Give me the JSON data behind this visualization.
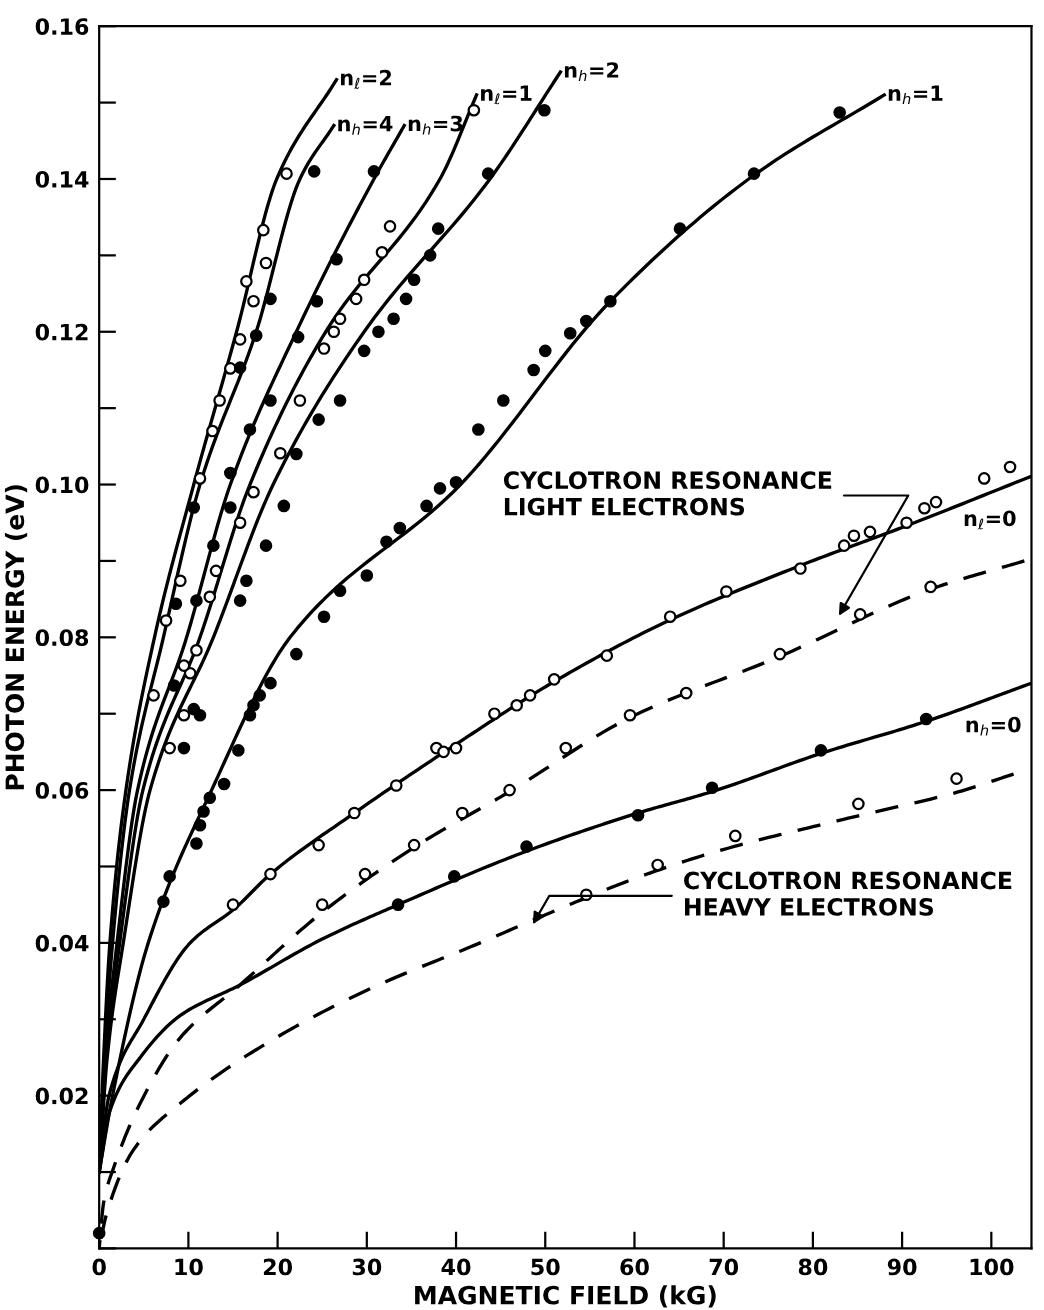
{
  "chart_data": {
    "type": "line",
    "xlabel": "MAGNETIC FIELD (kG)",
    "ylabel": "PHOTON ENERGY (eV)",
    "xlim": [
      0,
      104.5
    ],
    "ylim": [
      0,
      0.16
    ],
    "xticks": [
      0,
      10,
      20,
      30,
      40,
      50,
      60,
      70,
      80,
      90,
      100
    ],
    "yticks": [
      {
        "value": 0,
        "label": null
      },
      {
        "value": 0.01,
        "label": null
      },
      {
        "value": 0.02,
        "label": "0.02"
      },
      {
        "value": 0.03,
        "label": null
      },
      {
        "value": 0.04,
        "label": "0.04"
      },
      {
        "value": 0.05,
        "label": null
      },
      {
        "value": 0.06,
        "label": "0.06"
      },
      {
        "value": 0.07,
        "label": null
      },
      {
        "value": 0.08,
        "label": "0.08"
      },
      {
        "value": 0.09,
        "label": null
      },
      {
        "value": 0.1,
        "label": "0.10"
      },
      {
        "value": 0.11,
        "label": null
      },
      {
        "value": 0.12,
        "label": "0.12"
      },
      {
        "value": 0.13,
        "label": null
      },
      {
        "value": 0.14,
        "label": "0.14"
      },
      {
        "value": 0.15,
        "label": null
      },
      {
        "value": 0.16,
        "label": "0.16"
      }
    ],
    "grid": false,
    "legend": false,
    "annotations": [
      {
        "text": "CYCLOTRON RESONANCE\nLIGHT ELECTRONS",
        "x": 82.6,
        "y": 0.0822
      },
      {
        "text": "CYCLOTRON RESONANCE\nHEAVY ELECTRONS",
        "x": 48.3,
        "y": 0.0418
      }
    ],
    "series": [
      {
        "name": "n$_{ℓ}$=2",
        "color": "#000000",
        "line_style": "solid",
        "x": [
          0,
          0.5,
          1.2,
          3.0,
          6.2,
          10.6,
          15.4,
          19.9,
          26.6
        ],
        "values": [
          0.01,
          0.025,
          0.04,
          0.06,
          0.08,
          0.1,
          0.12,
          0.14,
          0.153
        ]
      },
      {
        "name": "n$_{h}$=4",
        "color": "#000000",
        "line_style": "solid",
        "x": [
          0,
          0.6,
          1.5,
          3.4,
          7.2,
          11.3,
          17.6,
          22.5,
          26.3
        ],
        "values": [
          0.01,
          0.025,
          0.04,
          0.06,
          0.08,
          0.1,
          0.12,
          0.14,
          0.147
        ]
      },
      {
        "name": "n$_{h}$=3",
        "color": "#000000",
        "line_style": "solid",
        "x": [
          0,
          0.7,
          2.0,
          4.3,
          9.8,
          14.7,
          22.1,
          30.8,
          34.2
        ],
        "values": [
          0.01,
          0.025,
          0.04,
          0.06,
          0.08,
          0.1,
          0.12,
          0.14,
          0.147
        ]
      },
      {
        "name": "n$_{ℓ}$=1",
        "color": "#000000",
        "line_style": "solid",
        "x": [
          0,
          0.8,
          2.3,
          4.9,
          11.3,
          16.9,
          25.4,
          38.2,
          42.3
        ],
        "values": [
          0.01,
          0.025,
          0.04,
          0.06,
          0.08,
          0.1,
          0.12,
          0.14,
          0.151
        ]
      },
      {
        "name": "n$_{h}$=2",
        "color": "#000000",
        "line_style": "solid",
        "x": [
          0,
          0.9,
          2.7,
          5.7,
          12.8,
          19.5,
          29.7,
          43.8,
          51.7
        ],
        "values": [
          0.01,
          0.025,
          0.04,
          0.06,
          0.08,
          0.1,
          0.12,
          0.14,
          0.154
        ]
      },
      {
        "name": "n$_{h}$=1",
        "color": "#000000",
        "line_style": "solid",
        "x": [
          0,
          1.5,
          5.5,
          12.6,
          21.4,
          40.5,
          57.3,
          73.4,
          88
        ],
        "values": [
          0.01,
          0.02,
          0.04,
          0.06,
          0.08,
          0.1,
          0.124,
          0.1405,
          0.151
        ]
      },
      {
        "name": "n$_{ℓ}$=0",
        "color": "#000000",
        "line_style": "solid",
        "x": [
          0,
          1.1,
          5,
          10.2,
          15.2,
          19.2,
          28.6,
          40,
          51,
          63.5,
          78.6,
          90.5,
          104.3
        ],
        "values": [
          0.01,
          0.02,
          0.03,
          0.04,
          0.0445,
          0.049,
          0.057,
          0.066,
          0.0742,
          0.082,
          0.0894,
          0.0946,
          0.101
        ]
      },
      {
        "name": "n$_{h}$=0",
        "color": "#000000",
        "line_style": "solid",
        "x": [
          0,
          1.2,
          4.6,
          9.1,
          15.8,
          25,
          33.5,
          47.9,
          60.4,
          68.7,
          80.9,
          92.7,
          104.5
        ],
        "values": [
          0.01,
          0.018,
          0.025,
          0.0305,
          0.0345,
          0.0405,
          0.045,
          0.052,
          0.057,
          0.0598,
          0.0648,
          0.069,
          0.074
        ]
      },
      {
        "color": "#000000",
        "line_style": "dashed",
        "x": [
          0,
          0.5,
          1.6,
          4.6,
          9.1,
          15.8,
          25,
          35.3,
          46,
          59.5,
          76.3,
          93.2,
          103.7
        ],
        "values": [
          0,
          0.006,
          0.0105,
          0.019,
          0.0276,
          0.0345,
          0.044,
          0.0525,
          0.0598,
          0.0695,
          0.0775,
          0.0863,
          0.09
        ]
      },
      {
        "color": "#000000",
        "line_style": "dashed",
        "x": [
          0,
          0.8,
          3.9,
          9.1,
          18.7,
          30,
          42.7,
          52.3,
          60.2,
          69.3,
          84.6,
          96.1,
          102.5
        ],
        "values": [
          0,
          0.0044,
          0.013,
          0.019,
          0.0268,
          0.0338,
          0.04,
          0.0448,
          0.0485,
          0.052,
          0.0565,
          0.0597,
          0.0621
        ]
      },
      {
        "type": "scatter",
        "color": "#ffffff",
        "marker": "circle",
        "x": [
          21,
          18.4,
          16.5,
          18.7,
          17.3,
          15.8,
          14.7,
          13.5,
          12.7,
          11.3,
          9.1,
          7.5,
          6.1,
          7.9,
          10.9,
          10.2,
          9.5,
          9.5
        ],
        "values": [
          0.1407,
          0.1333,
          0.1266,
          0.129,
          0.124,
          0.119,
          0.1152,
          0.111,
          0.107,
          0.1008,
          0.0874,
          0.0822,
          0.0724,
          0.0655,
          0.0783,
          0.0753,
          0.0763,
          0.0698
        ]
      },
      {
        "type": "scatter",
        "color": "#000000",
        "marker": "circle",
        "x": [
          24.1,
          19.2,
          17.6,
          15.8,
          10.6,
          8.6,
          8.4,
          9.5,
          10.6,
          11.3
        ],
        "values": [
          0.141,
          0.1243,
          0.1195,
          0.1153,
          0.097,
          0.0844,
          0.0737,
          0.0655,
          0.0706,
          0.0698
        ]
      },
      {
        "type": "scatter",
        "color": "#000000",
        "marker": "circle",
        "x": [
          30.8,
          26.6,
          24.4,
          22.3,
          19.2,
          16.9,
          14.7,
          14.7,
          12.8,
          10.9
        ],
        "values": [
          0.141,
          0.1295,
          0.124,
          0.1193,
          0.111,
          0.1072,
          0.1015,
          0.097,
          0.092,
          0.0848
        ]
      },
      {
        "type": "scatter",
        "color": "#ffffff",
        "marker": "circle",
        "x": [
          42,
          32.6,
          31.7,
          29.7,
          28.8,
          27,
          26.3,
          25.2,
          22.5,
          20.3,
          17.3,
          15.8,
          13.1,
          12.4
        ],
        "values": [
          0.149,
          0.1338,
          0.1304,
          0.1268,
          0.1243,
          0.1217,
          0.12,
          0.1178,
          0.111,
          0.1041,
          0.099,
          0.095,
          0.0887,
          0.0853
        ]
      },
      {
        "type": "scatter",
        "color": "#000000",
        "marker": "circle",
        "x": [
          49.9,
          43.6,
          38,
          37.1,
          35.3,
          34.4,
          33,
          31.3,
          29.7,
          27,
          24.6,
          22.1,
          20.7,
          18.7,
          16.5,
          15.8
        ],
        "values": [
          0.149,
          0.1407,
          0.1335,
          0.13,
          0.1268,
          0.1243,
          0.1217,
          0.12,
          0.1175,
          0.111,
          0.1085,
          0.104,
          0.0972,
          0.092,
          0.0874,
          0.0848
        ]
      },
      {
        "type": "scatter",
        "color": "#000000",
        "marker": "circle",
        "x": [
          83,
          73.4,
          65.1,
          57.3,
          54.6,
          52.8,
          50,
          48.7,
          45.3,
          42.5,
          40,
          38.2,
          36.7,
          33.7,
          32.2,
          30,
          27,
          25.2,
          22.1,
          19.2,
          18,
          17.3,
          16.9,
          15.6,
          14,
          12.4,
          11.7,
          11.3,
          10.9,
          7.9,
          7.2
        ],
        "values": [
          0.1487,
          0.1407,
          0.1335,
          0.124,
          0.1214,
          0.1198,
          0.1175,
          0.115,
          0.111,
          0.1072,
          0.1003,
          0.0995,
          0.0972,
          0.0943,
          0.0925,
          0.0881,
          0.0861,
          0.0827,
          0.0778,
          0.074,
          0.0724,
          0.0711,
          0.0698,
          0.0652,
          0.0608,
          0.059,
          0.0572,
          0.0554,
          0.053,
          0.0487,
          0.0454
        ]
      },
      {
        "type": "scatter",
        "color": "#ffffff",
        "marker": "circle",
        "x": [
          15,
          19.2,
          24.6,
          28.6,
          33.3,
          37.8,
          38.6,
          40,
          44.3,
          46.8,
          48.3,
          51,
          56.9,
          64,
          70.3,
          78.6,
          83.5,
          84.6,
          86.4,
          90.5,
          92.5,
          93.8,
          99.2,
          102.1
        ],
        "values": [
          0.045,
          0.049,
          0.0528,
          0.057,
          0.0606,
          0.0655,
          0.065,
          0.0655,
          0.07,
          0.0711,
          0.0724,
          0.0745,
          0.0776,
          0.0827,
          0.086,
          0.089,
          0.092,
          0.0933,
          0.0938,
          0.095,
          0.0969,
          0.0977,
          0.1008,
          0.1023
        ]
      },
      {
        "type": "scatter",
        "color": "#ffffff",
        "marker": "circle",
        "x": [
          25,
          29.8,
          35.3,
          40.7,
          46,
          52.3,
          59.5,
          65.8,
          76.3,
          85.3,
          93.2
        ],
        "values": [
          0.045,
          0.049,
          0.0528,
          0.057,
          0.06,
          0.0655,
          0.0698,
          0.0727,
          0.0778,
          0.083,
          0.0866
        ]
      },
      {
        "type": "scatter",
        "color": "#000000",
        "marker": "circle",
        "x": [
          0,
          33.5,
          39.8,
          47.9,
          60.4,
          68.7,
          80.9,
          92.7
        ],
        "values": [
          0.002,
          0.045,
          0.0487,
          0.0526,
          0.0567,
          0.0603,
          0.0652,
          0.0693
        ]
      },
      {
        "type": "scatter",
        "color": "#ffffff",
        "marker": "circle",
        "x": [
          54.6,
          62.6,
          71.3,
          85.1,
          96.1
        ],
        "values": [
          0.0463,
          0.0502,
          0.054,
          0.0582,
          0.0615
        ]
      }
    ]
  }
}
